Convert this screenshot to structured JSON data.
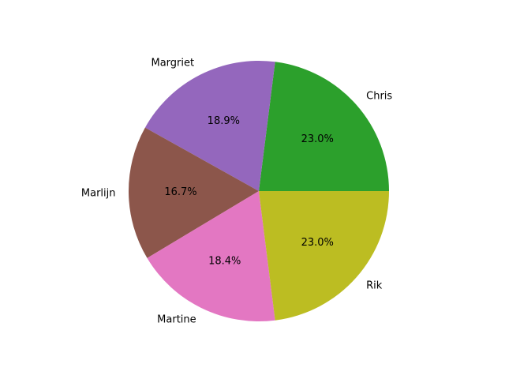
{
  "chart_data": {
    "type": "pie",
    "title": "",
    "slices": [
      {
        "label": "Chris",
        "value": 23.0,
        "pct_label": "23.0%",
        "color": "#2ca02c"
      },
      {
        "label": "Margriet",
        "value": 18.9,
        "pct_label": "18.9%",
        "color": "#9467bd"
      },
      {
        "label": "Marlijn",
        "value": 16.7,
        "pct_label": "16.7%",
        "color": "#8c564b"
      },
      {
        "label": "Martine",
        "value": 18.4,
        "pct_label": "18.4%",
        "color": "#e377c2"
      },
      {
        "label": "Rik",
        "value": 23.0,
        "pct_label": "23.0%",
        "color": "#bcbd22"
      }
    ],
    "start_angle_deg": 0,
    "direction": "counterclockwise",
    "legend": "none"
  }
}
